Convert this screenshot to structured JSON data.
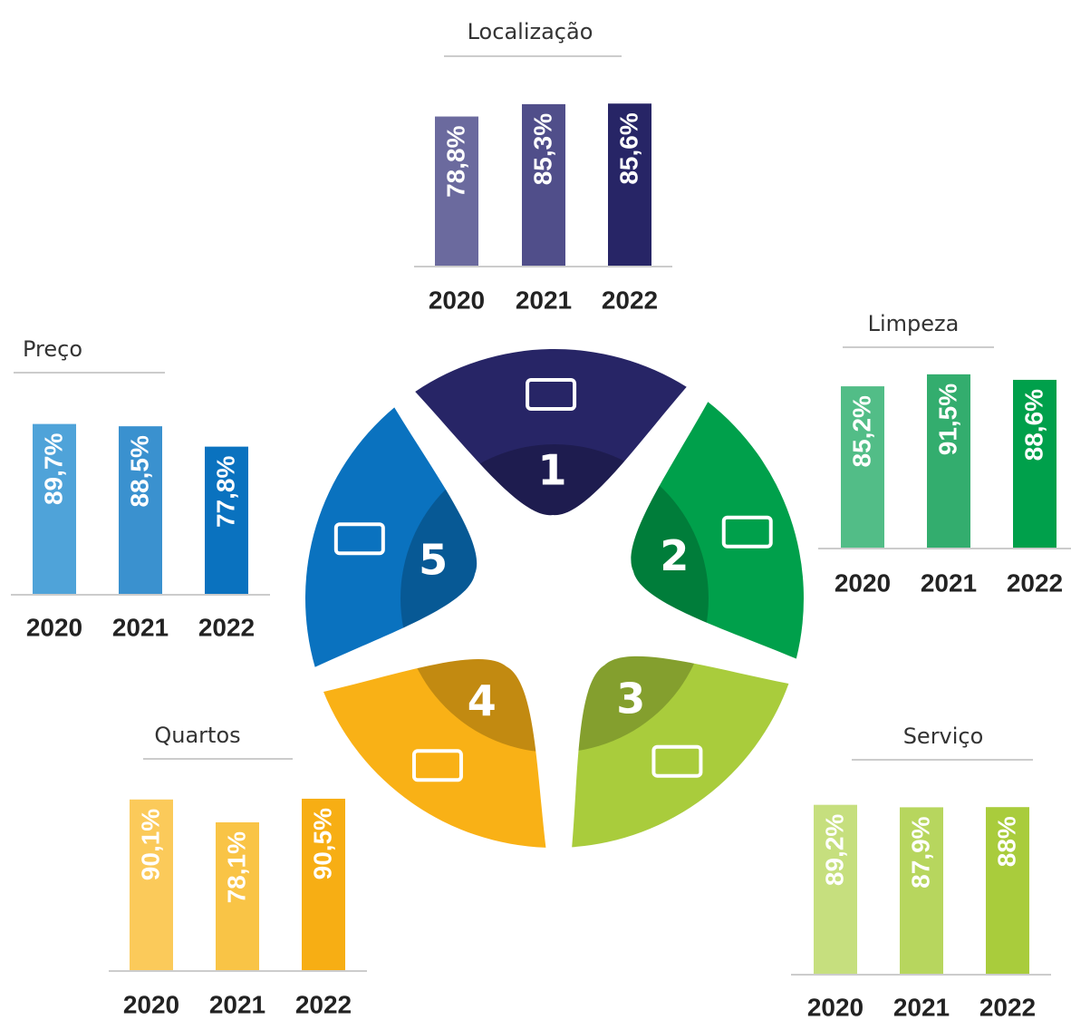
{
  "chart_data": [
    {
      "type": "bar",
      "title": "Localização",
      "categories": [
        "2020",
        "2021",
        "2022"
      ],
      "values": [
        78.8,
        85.3,
        85.6
      ],
      "value_labels": [
        "78,8%",
        "85,3%",
        "85,6%"
      ],
      "colors": [
        "#6b6a9e",
        "#504e8a",
        "#272566"
      ],
      "ylim": [
        0,
        100
      ]
    },
    {
      "type": "bar",
      "title": "Limpeza",
      "categories": [
        "2020",
        "2021",
        "2022"
      ],
      "values": [
        85.2,
        91.5,
        88.6
      ],
      "value_labels": [
        "85,2%",
        "91,5%",
        "88,6%"
      ],
      "colors": [
        "#52bd87",
        "#33ad6e",
        "#00a04b"
      ],
      "ylim": [
        0,
        100
      ]
    },
    {
      "type": "bar",
      "title": "Serviço",
      "categories": [
        "2020",
        "2021",
        "2022"
      ],
      "values": [
        89.2,
        87.9,
        88
      ],
      "value_labels": [
        "89,2%",
        "87,9%",
        "88%"
      ],
      "colors": [
        "#c6df7e",
        "#b7d65e",
        "#a9cc3c"
      ],
      "ylim": [
        0,
        100
      ]
    },
    {
      "type": "bar",
      "title": "Quartos",
      "categories": [
        "2020",
        "2021",
        "2022"
      ],
      "values": [
        90.1,
        78.1,
        90.5
      ],
      "value_labels": [
        "90,1%",
        "78,1%",
        "90,5%"
      ],
      "colors": [
        "#fbca5a",
        "#f9c446",
        "#f7ae14"
      ],
      "ylim": [
        0,
        100
      ]
    },
    {
      "type": "bar",
      "title": "Preço",
      "categories": [
        "2020",
        "2021",
        "2022"
      ],
      "values": [
        89.7,
        88.5,
        77.8
      ],
      "value_labels": [
        "89,7%",
        "88,5%",
        "77,8%"
      ],
      "colors": [
        "#4fa3d9",
        "#3a91cf",
        "#0a72bf"
      ],
      "ylim": [
        0,
        100
      ]
    }
  ],
  "wheel": {
    "labels": [
      "1",
      "2",
      "3",
      "4",
      "5"
    ],
    "colors": [
      "#272566",
      "#00a04b",
      "#a9cc3c",
      "#f9b116",
      "#0a72bf"
    ]
  }
}
